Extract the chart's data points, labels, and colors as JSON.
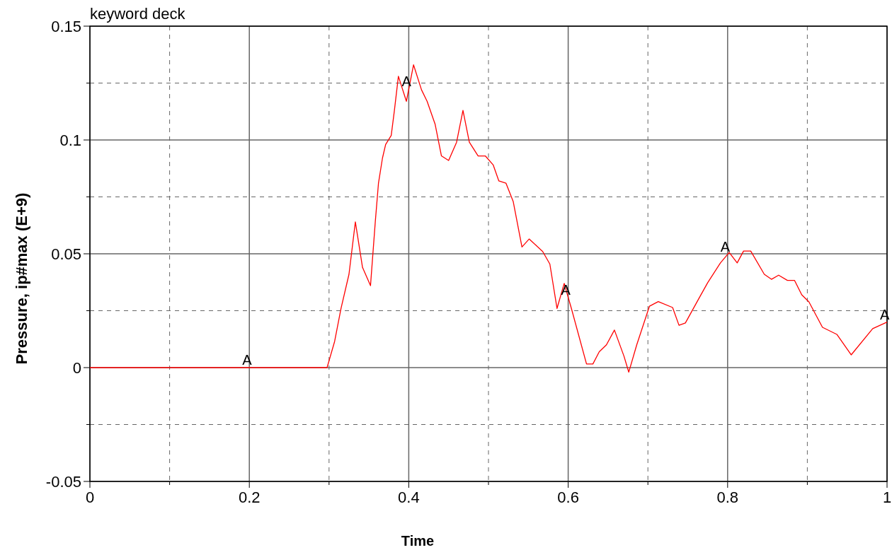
{
  "chart_data": {
    "type": "line",
    "title": "keyword deck",
    "xlabel": "Time",
    "ylabel": "Pressure, ip#max (E+9)",
    "xlim": [
      0,
      1
    ],
    "ylim": [
      -0.05,
      0.15
    ],
    "xticks": [
      0,
      {
        "value": 0.1,
        "label": null
      },
      0.2,
      {
        "value": 0.3,
        "label": null
      },
      0.4,
      {
        "value": 0.5,
        "label": null
      },
      0.6,
      {
        "value": 0.7,
        "label": null
      },
      0.8,
      {
        "value": 0.9,
        "label": null
      },
      1
    ],
    "yticks": [
      -0.05,
      {
        "value": -0.025,
        "label": null
      },
      0,
      {
        "value": 0.025,
        "label": null
      },
      0.05,
      {
        "value": 0.075,
        "label": null
      },
      0.1,
      {
        "value": 0.125,
        "label": null
      },
      0.15
    ],
    "grid": true,
    "series": [
      {
        "name": "A",
        "color": "#ff0000",
        "x": [
          0,
          0.2975,
          0.307,
          0.315,
          0.325,
          0.333,
          0.342,
          0.352,
          0.358,
          0.362,
          0.367,
          0.371,
          0.378,
          0.382,
          0.387,
          0.397,
          0.406,
          0.416,
          0.423,
          0.433,
          0.441,
          0.45,
          0.46,
          0.468,
          0.476,
          0.487,
          0.496,
          0.506,
          0.513,
          0.522,
          0.531,
          0.542,
          0.551,
          0.568,
          0.577,
          0.586,
          0.595,
          0.604,
          0.623,
          0.631,
          0.639,
          0.648,
          0.658,
          0.67,
          0.676,
          0.686,
          0.702,
          0.713,
          0.731,
          0.739,
          0.747,
          0.764,
          0.775,
          0.791,
          0.802,
          0.812,
          0.82,
          0.829,
          0.846,
          0.855,
          0.864,
          0.875,
          0.884,
          0.893,
          0.902,
          0.919,
          0.937,
          0.955,
          0.982,
          1
        ],
        "values": [
          0,
          0,
          0.0115,
          0.026,
          0.041,
          0.064,
          0.044,
          0.036,
          0.064,
          0.081,
          0.092,
          0.098,
          0.102,
          0.113,
          0.128,
          0.117,
          0.133,
          0.122,
          0.117,
          0.107,
          0.093,
          0.091,
          0.099,
          0.113,
          0.099,
          0.093,
          0.093,
          0.089,
          0.082,
          0.081,
          0.073,
          0.053,
          0.0565,
          0.051,
          0.0455,
          0.026,
          0.037,
          0.026,
          0.0016,
          0.0016,
          0.007,
          0.01,
          0.0165,
          0.005,
          -0.002,
          0.01,
          0.027,
          0.029,
          0.0264,
          0.0186,
          0.0196,
          0.0304,
          0.0373,
          0.046,
          0.0506,
          0.046,
          0.0512,
          0.0512,
          0.041,
          0.0388,
          0.0406,
          0.0383,
          0.0383,
          0.032,
          0.0289,
          0.0177,
          0.0146,
          0.0056,
          0.0171,
          0.02
        ]
      }
    ]
  }
}
